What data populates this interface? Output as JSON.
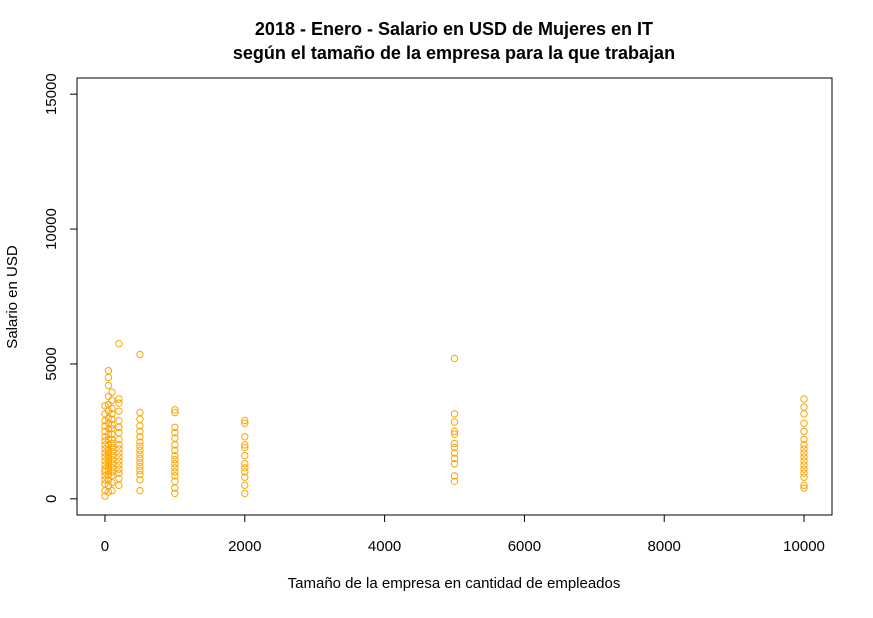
{
  "chart_data": {
    "type": "scatter",
    "title": [
      "2018 - Enero - Salario en USD de Mujeres en IT",
      "según el tamaño de la empresa para la que trabajan"
    ],
    "xlabel": "Tamaño de la empresa en cantidad de empleados",
    "ylabel": "Salario en USD",
    "xlim": [
      -400,
      10400
    ],
    "ylim": [
      -600,
      15600
    ],
    "xticks": [
      0,
      2000,
      4000,
      6000,
      8000,
      10000
    ],
    "yticks": [
      0,
      5000,
      10000,
      15000
    ],
    "grid": false,
    "point_color": "#FFA500",
    "series": [
      {
        "points": [
          [
            0,
            100
          ],
          [
            0,
            300
          ],
          [
            0,
            550
          ],
          [
            0,
            700
          ],
          [
            0,
            850
          ],
          [
            0,
            1000
          ],
          [
            0,
            1100
          ],
          [
            0,
            1250
          ],
          [
            0,
            1400
          ],
          [
            0,
            1550
          ],
          [
            0,
            1700
          ],
          [
            0,
            1850
          ],
          [
            0,
            2000
          ],
          [
            0,
            2150
          ],
          [
            0,
            2300
          ],
          [
            0,
            2500
          ],
          [
            0,
            2700
          ],
          [
            0,
            2900
          ],
          [
            0,
            3150
          ],
          [
            0,
            3450
          ],
          [
            50,
            250
          ],
          [
            50,
            500
          ],
          [
            50,
            700
          ],
          [
            50,
            900
          ],
          [
            50,
            1050
          ],
          [
            50,
            1200
          ],
          [
            50,
            1350
          ],
          [
            50,
            1500
          ],
          [
            50,
            1650
          ],
          [
            50,
            1800
          ],
          [
            50,
            2000
          ],
          [
            50,
            2200
          ],
          [
            50,
            2400
          ],
          [
            50,
            2600
          ],
          [
            50,
            2800
          ],
          [
            50,
            3000
          ],
          [
            50,
            3250
          ],
          [
            50,
            3500
          ],
          [
            50,
            3800
          ],
          [
            50,
            4200
          ],
          [
            50,
            4500
          ],
          [
            50,
            4750
          ],
          [
            100,
            300
          ],
          [
            100,
            600
          ],
          [
            100,
            850
          ],
          [
            100,
            1000
          ],
          [
            100,
            1150
          ],
          [
            100,
            1300
          ],
          [
            100,
            1450
          ],
          [
            100,
            1600
          ],
          [
            100,
            1750
          ],
          [
            100,
            1900
          ],
          [
            100,
            2050
          ],
          [
            100,
            2200
          ],
          [
            100,
            2400
          ],
          [
            100,
            2600
          ],
          [
            100,
            2750
          ],
          [
            100,
            2950
          ],
          [
            100,
            3150
          ],
          [
            100,
            3350
          ],
          [
            100,
            3650
          ],
          [
            100,
            3950
          ],
          [
            200,
            500
          ],
          [
            200,
            750
          ],
          [
            200,
            950
          ],
          [
            200,
            1100
          ],
          [
            200,
            1250
          ],
          [
            200,
            1400
          ],
          [
            200,
            1550
          ],
          [
            200,
            1700
          ],
          [
            200,
            1850
          ],
          [
            200,
            2000
          ],
          [
            200,
            2200
          ],
          [
            200,
            2450
          ],
          [
            200,
            2650
          ],
          [
            200,
            2900
          ],
          [
            200,
            3250
          ],
          [
            200,
            3550
          ],
          [
            200,
            3700
          ],
          [
            200,
            5750
          ],
          [
            500,
            300
          ],
          [
            500,
            700
          ],
          [
            500,
            900
          ],
          [
            500,
            1050
          ],
          [
            500,
            1200
          ],
          [
            500,
            1350
          ],
          [
            500,
            1500
          ],
          [
            500,
            1650
          ],
          [
            500,
            1800
          ],
          [
            500,
            1950
          ],
          [
            500,
            2100
          ],
          [
            500,
            2300
          ],
          [
            500,
            2500
          ],
          [
            500,
            2700
          ],
          [
            500,
            2950
          ],
          [
            500,
            3200
          ],
          [
            500,
            5350
          ],
          [
            1000,
            200
          ],
          [
            1000,
            400
          ],
          [
            1000,
            650
          ],
          [
            1000,
            850
          ],
          [
            1000,
            1000
          ],
          [
            1000,
            1150
          ],
          [
            1000,
            1300
          ],
          [
            1000,
            1450
          ],
          [
            1000,
            1600
          ],
          [
            1000,
            1800
          ],
          [
            1000,
            2000
          ],
          [
            1000,
            2250
          ],
          [
            1000,
            2450
          ],
          [
            1000,
            2650
          ],
          [
            1000,
            3200
          ],
          [
            1000,
            3300
          ],
          [
            2000,
            200
          ],
          [
            2000,
            500
          ],
          [
            2000,
            800
          ],
          [
            2000,
            1000
          ],
          [
            2000,
            1150
          ],
          [
            2000,
            1300
          ],
          [
            2000,
            1600
          ],
          [
            2000,
            1900
          ],
          [
            2000,
            2000
          ],
          [
            2000,
            2300
          ],
          [
            2000,
            2800
          ],
          [
            2000,
            2900
          ],
          [
            5000,
            650
          ],
          [
            5000,
            850
          ],
          [
            5000,
            1300
          ],
          [
            5000,
            1500
          ],
          [
            5000,
            1700
          ],
          [
            5000,
            1900
          ],
          [
            5000,
            2050
          ],
          [
            5000,
            2400
          ],
          [
            5000,
            2500
          ],
          [
            5000,
            2850
          ],
          [
            5000,
            3150
          ],
          [
            5000,
            5200
          ],
          [
            10000,
            400
          ],
          [
            10000,
            500
          ],
          [
            10000,
            800
          ],
          [
            10000,
            950
          ],
          [
            10000,
            1100
          ],
          [
            10000,
            1250
          ],
          [
            10000,
            1400
          ],
          [
            10000,
            1550
          ],
          [
            10000,
            1700
          ],
          [
            10000,
            1850
          ],
          [
            10000,
            2000
          ],
          [
            10000,
            2200
          ],
          [
            10000,
            2500
          ],
          [
            10000,
            2800
          ],
          [
            10000,
            3150
          ],
          [
            10000,
            3400
          ],
          [
            10000,
            3700
          ]
        ]
      }
    ]
  }
}
